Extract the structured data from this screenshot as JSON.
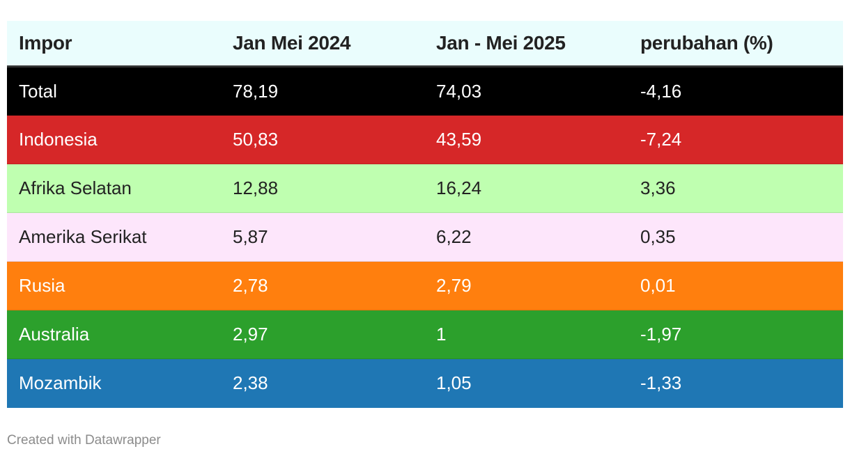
{
  "chart_data": {
    "type": "table",
    "columns": [
      "Impor",
      "Jan Mei 2024",
      "Jan - Mei 2025",
      "perubahan (%)"
    ],
    "rows": [
      {
        "cells": [
          "Total",
          "78,19",
          "74,03",
          "-4,16"
        ],
        "bg": "#000000",
        "fg": "#ffffff"
      },
      {
        "cells": [
          "Indonesia",
          "50,83",
          "43,59",
          "-7,24"
        ],
        "bg": "#d62728",
        "fg": "#ffffff"
      },
      {
        "cells": [
          "Afrika Selatan",
          "12,88",
          "16,24",
          "3,36"
        ],
        "bg": "#bfffb0",
        "fg": "#222222"
      },
      {
        "cells": [
          "Amerika Serikat",
          "5,87",
          "6,22",
          "0,35"
        ],
        "bg": "#fde6fb",
        "fg": "#222222"
      },
      {
        "cells": [
          "Rusia",
          "2,78",
          "2,79",
          "0,01"
        ],
        "bg": "#ff7f0e",
        "fg": "#ffffff"
      },
      {
        "cells": [
          "Australia",
          "2,97",
          "1",
          "-1,97"
        ],
        "bg": "#2ca02c",
        "fg": "#ffffff"
      },
      {
        "cells": [
          "Mozambik",
          "2,38",
          "1,05",
          "-1,33"
        ],
        "bg": "#1f77b4",
        "fg": "#ffffff"
      }
    ]
  },
  "footer": {
    "credit": "Created with Datawrapper"
  }
}
